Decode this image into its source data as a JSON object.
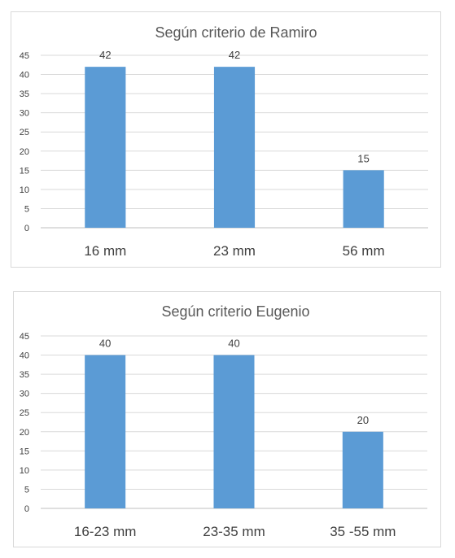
{
  "chart_data": [
    {
      "type": "bar",
      "title": "Según criterio de Ramiro",
      "categories": [
        "16  mm",
        "23 mm",
        "56 mm"
      ],
      "values": [
        42,
        42,
        15
      ],
      "ylim": [
        0,
        45
      ],
      "yticks": [
        0,
        5,
        10,
        15,
        20,
        25,
        30,
        35,
        40,
        45
      ],
      "grid": true,
      "data_labels": true,
      "bar_color": "#5b9bd5"
    },
    {
      "type": "bar",
      "title": "Según criterio Eugenio",
      "categories": [
        "16-23 mm",
        "23-35 mm",
        "35 -55 mm"
      ],
      "values": [
        40,
        40,
        20
      ],
      "ylim": [
        0,
        45
      ],
      "yticks": [
        0,
        5,
        10,
        15,
        20,
        25,
        30,
        35,
        40,
        45
      ],
      "grid": true,
      "data_labels": true,
      "bar_color": "#5b9bd5"
    }
  ]
}
